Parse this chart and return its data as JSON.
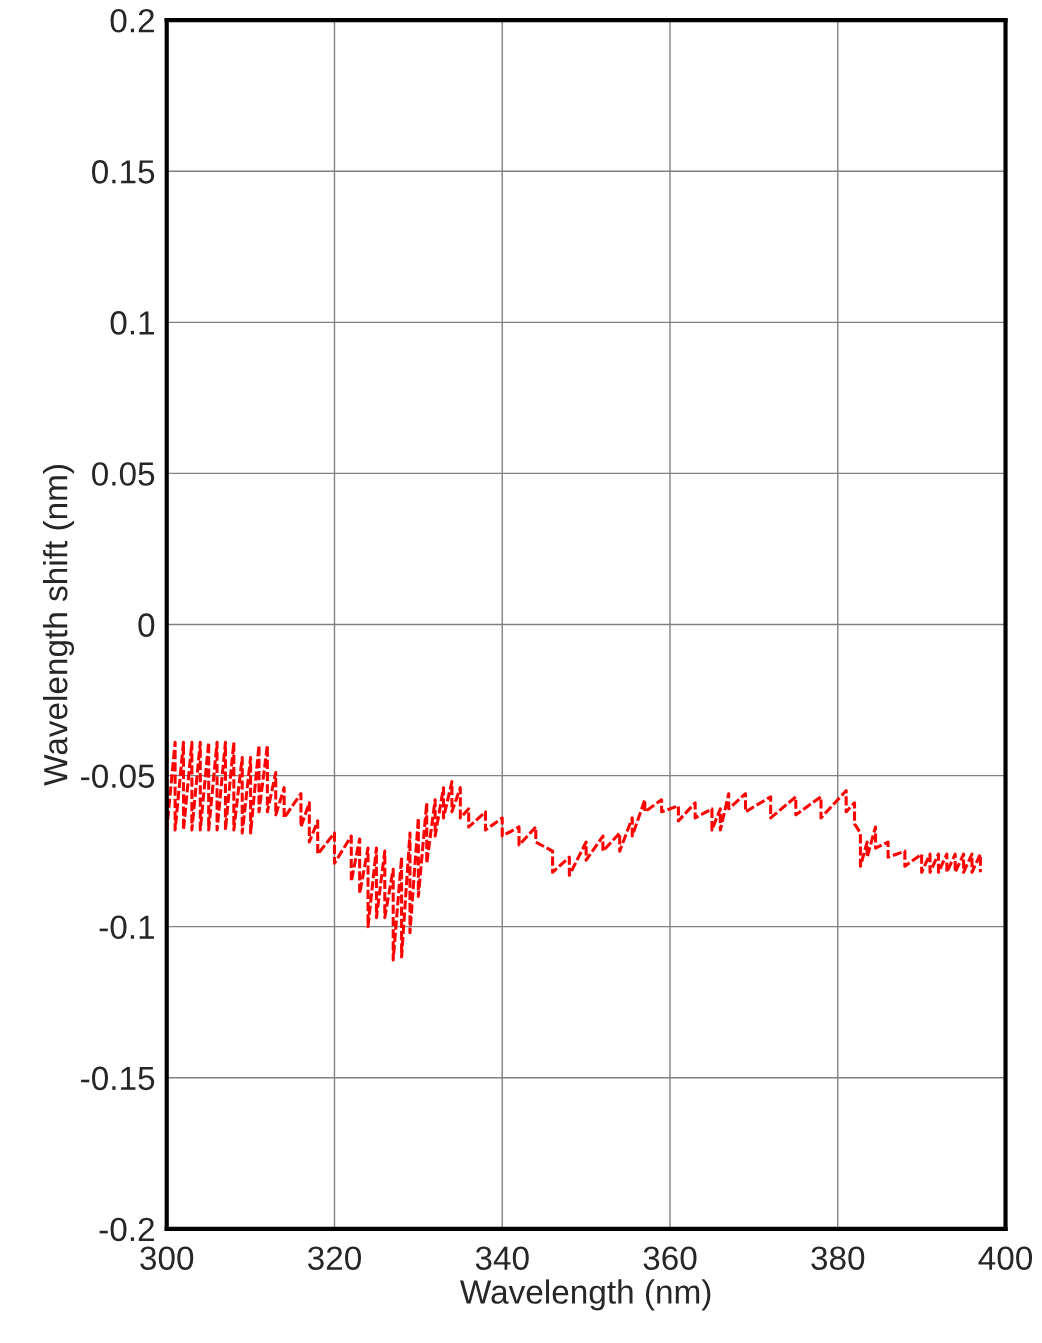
{
  "chart_data": {
    "type": "line",
    "xlabel": "Wavelength (nm)",
    "ylabel": "Wavelength shift (nm)",
    "xlim": [
      300,
      400
    ],
    "ylim": [
      -0.2,
      0.2
    ],
    "xticks": [
      300,
      320,
      340,
      360,
      380,
      400
    ],
    "yticks": [
      -0.2,
      -0.15,
      -0.1,
      -0.05,
      0,
      0.05,
      0.1,
      0.15,
      0.2
    ],
    "grid": true,
    "line_style": "dashed",
    "marker": "none",
    "series": [
      {
        "color": "#ff0000",
        "x": [
          300,
          300,
          301,
          301,
          302,
          302,
          303,
          303,
          304,
          304,
          305,
          305,
          306,
          306,
          307,
          307,
          308,
          308,
          309,
          309,
          310,
          310,
          311,
          311,
          312,
          312,
          313,
          313,
          314,
          314,
          316,
          316,
          317,
          317,
          318,
          318,
          320,
          320,
          322,
          322,
          323,
          323,
          324,
          324,
          325,
          325,
          326,
          326,
          327,
          327,
          328,
          328,
          329,
          329,
          330,
          330,
          331,
          331,
          332,
          332,
          333,
          333,
          334,
          334,
          335,
          335,
          336,
          336,
          338,
          338,
          340,
          340,
          342,
          342,
          344,
          344,
          346,
          346,
          348,
          348,
          350,
          350,
          352,
          352,
          354,
          354,
          355.5,
          355.5,
          357,
          357,
          359,
          359,
          361,
          361,
          363,
          363,
          365,
          365,
          366,
          366,
          367,
          367,
          369,
          369,
          372,
          372,
          375,
          375,
          378,
          378,
          381,
          381,
          382,
          382,
          382.7,
          382.7,
          383.5,
          383.5,
          384.5,
          384.5,
          386,
          386,
          388,
          388,
          390,
          390,
          391,
          391,
          392,
          392,
          393,
          393,
          394,
          394,
          395,
          395,
          396,
          396,
          397,
          397
        ],
        "values": [
          -0.039,
          -0.068,
          -0.039,
          -0.068,
          -0.039,
          -0.068,
          -0.039,
          -0.068,
          -0.039,
          -0.068,
          -0.039,
          -0.068,
          -0.039,
          -0.068,
          -0.039,
          -0.068,
          -0.039,
          -0.068,
          -0.044,
          -0.069,
          -0.044,
          -0.069,
          -0.04,
          -0.062,
          -0.04,
          -0.062,
          -0.049,
          -0.063,
          -0.054,
          -0.064,
          -0.056,
          -0.067,
          -0.059,
          -0.072,
          -0.065,
          -0.076,
          -0.069,
          -0.079,
          -0.07,
          -0.085,
          -0.071,
          -0.089,
          -0.074,
          -0.1,
          -0.074,
          -0.097,
          -0.075,
          -0.097,
          -0.081,
          -0.111,
          -0.077,
          -0.11,
          -0.069,
          -0.102,
          -0.064,
          -0.09,
          -0.059,
          -0.079,
          -0.058,
          -0.07,
          -0.054,
          -0.064,
          -0.052,
          -0.062,
          -0.054,
          -0.064,
          -0.061,
          -0.067,
          -0.062,
          -0.068,
          -0.064,
          -0.07,
          -0.067,
          -0.073,
          -0.067,
          -0.072,
          -0.075,
          -0.082,
          -0.077,
          -0.083,
          -0.072,
          -0.078,
          -0.07,
          -0.075,
          -0.069,
          -0.075,
          -0.064,
          -0.07,
          -0.058,
          -0.062,
          -0.058,
          -0.062,
          -0.06,
          -0.065,
          -0.059,
          -0.064,
          -0.061,
          -0.068,
          -0.061,
          -0.068,
          -0.056,
          -0.061,
          -0.056,
          -0.062,
          -0.057,
          -0.064,
          -0.057,
          -0.063,
          -0.057,
          -0.064,
          -0.055,
          -0.062,
          -0.059,
          -0.066,
          -0.069,
          -0.08,
          -0.072,
          -0.077,
          -0.067,
          -0.074,
          -0.072,
          -0.077,
          -0.075,
          -0.08,
          -0.076,
          -0.082,
          -0.076,
          -0.082,
          -0.076,
          -0.082,
          -0.076,
          -0.082,
          -0.076,
          -0.082,
          -0.076,
          -0.082,
          -0.076,
          -0.082,
          -0.076,
          -0.082
        ]
      }
    ]
  }
}
